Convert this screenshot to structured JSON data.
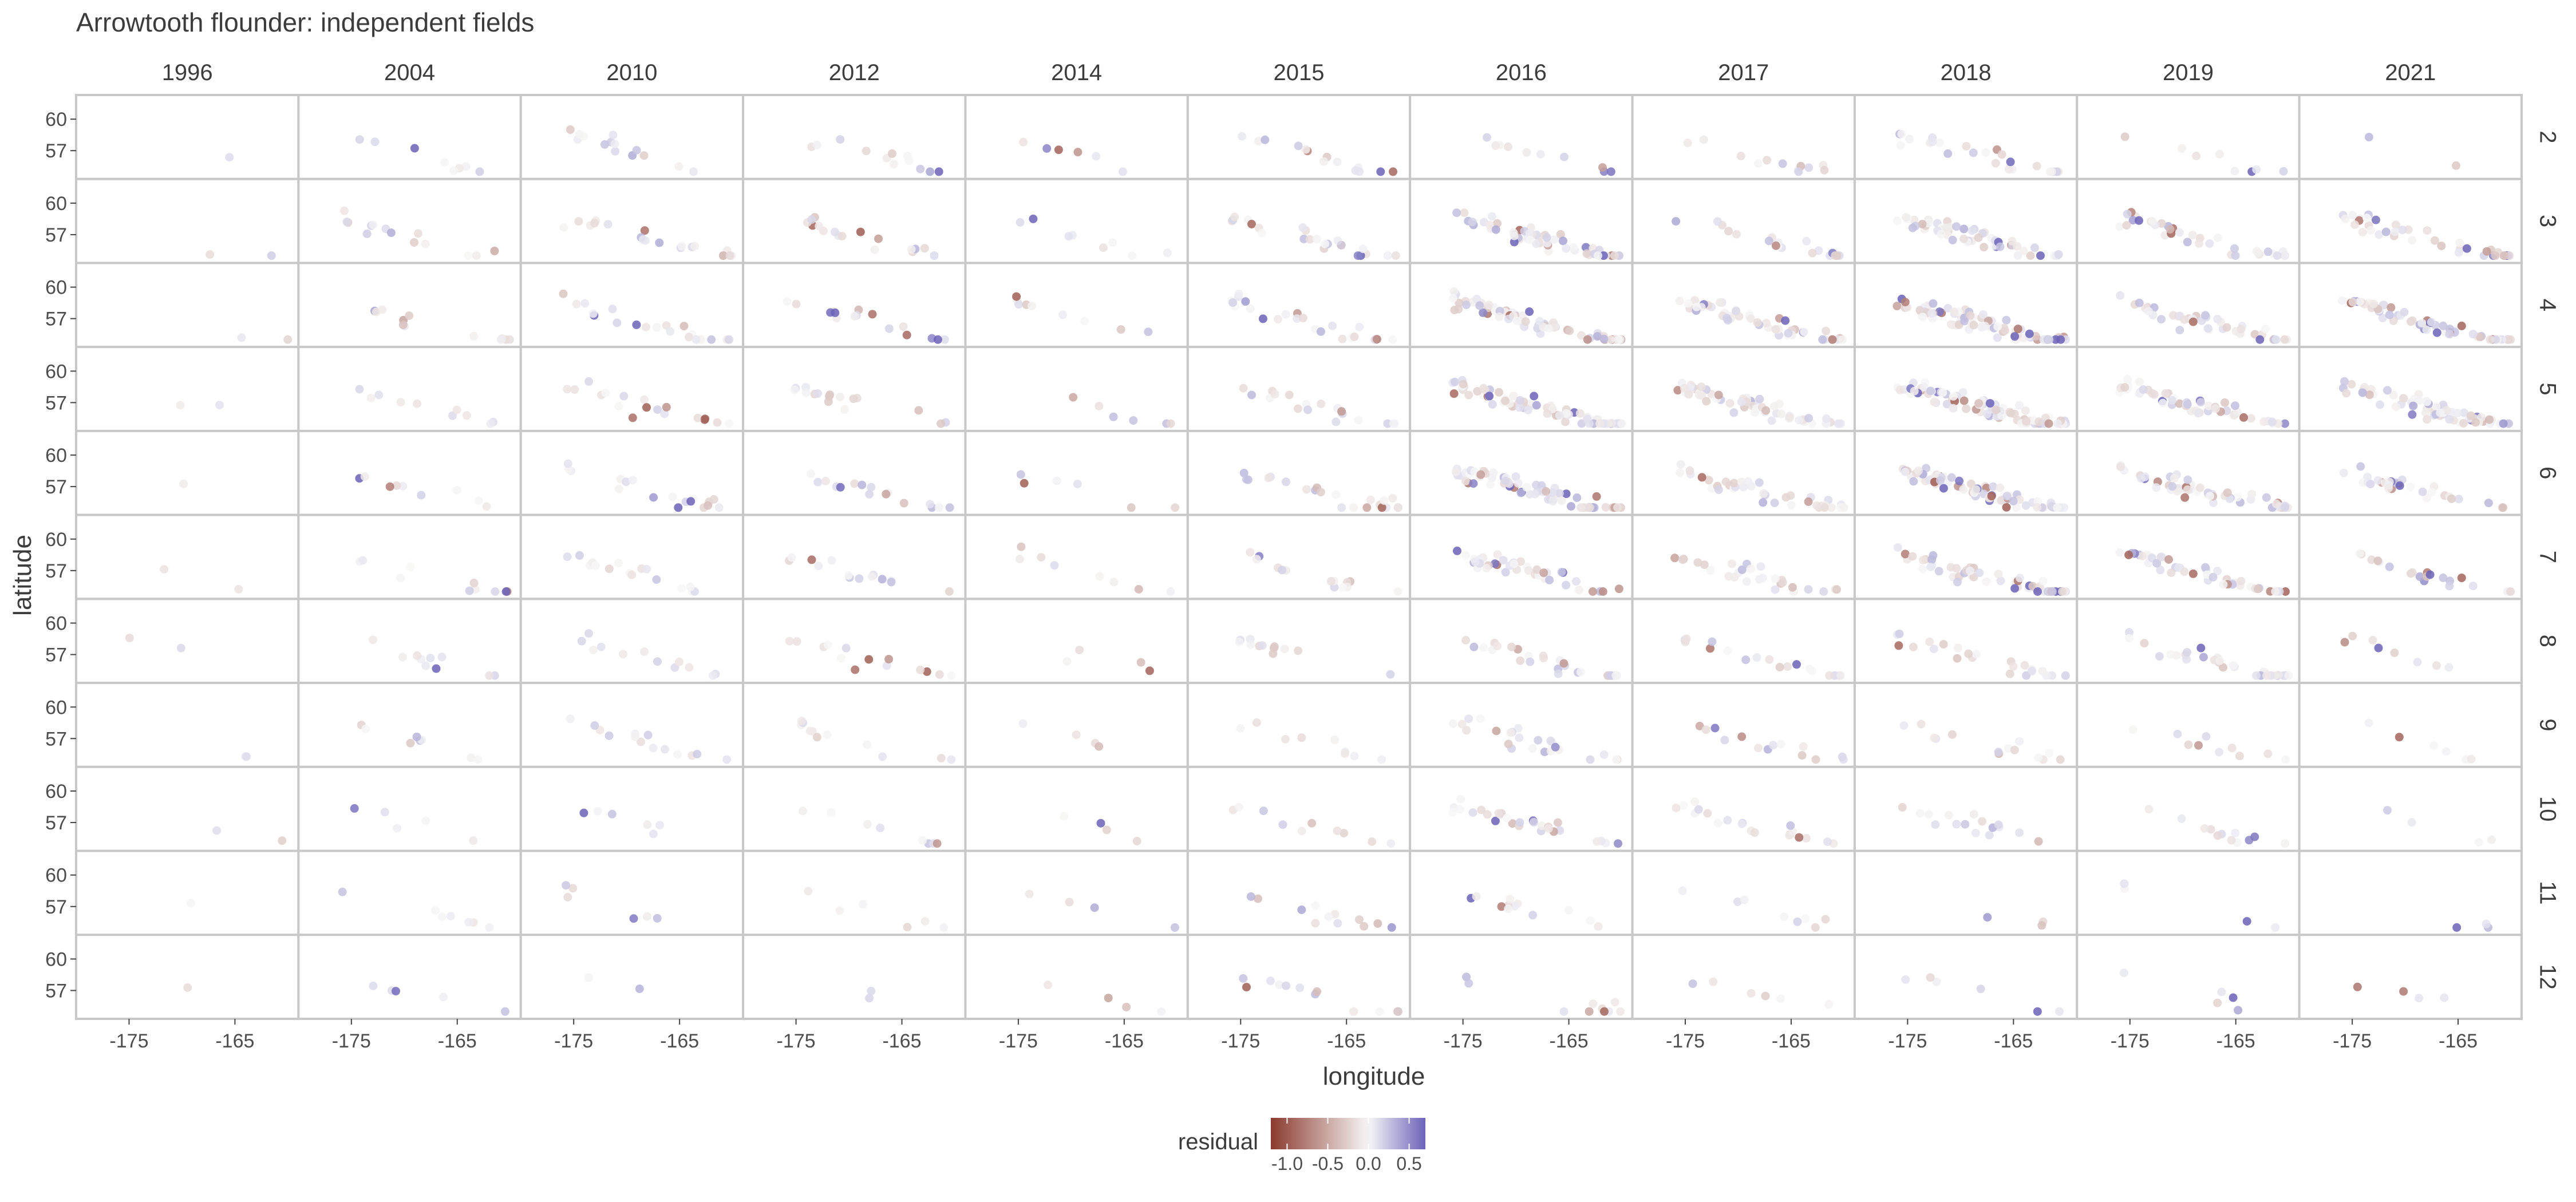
{
  "chart_data": {
    "type": "scatter",
    "title": "Arrowtooth flounder: independent fields",
    "xlabel": "longitude",
    "ylabel": "latitude",
    "facet_columns": [
      "1996",
      "2004",
      "2010",
      "2012",
      "2014",
      "2015",
      "2016",
      "2017",
      "2018",
      "2019",
      "2021"
    ],
    "facet_rows": [
      "2",
      "3",
      "4",
      "5",
      "6",
      "7",
      "8",
      "9",
      "10",
      "11",
      "12"
    ],
    "x_ticks": [
      -175,
      -165
    ],
    "x_tick_labels": [
      "-175",
      "-165"
    ],
    "y_ticks": [
      60,
      57
    ],
    "y_tick_labels": [
      "60",
      "57"
    ],
    "xlim": [
      -180,
      -159
    ],
    "ylim": [
      54.3,
      62.3
    ],
    "legend": {
      "title": "residual",
      "position": "bottom",
      "range": [
        -1.2,
        0.7
      ],
      "ticks": [
        -1.0,
        -0.5,
        0.0,
        0.5
      ],
      "tick_labels": [
        "-1.0",
        "-0.5",
        "0.0",
        "0.5"
      ],
      "low_color": "#8b3a2e",
      "mid_color": "#f7f7f7",
      "high_color": "#6b63b8"
    },
    "panel_background": "#ffffff",
    "panel_border_color": "#c8c8c8",
    "points_note": "Each panel holds survey stations (longitude, latitude) colored by residual; density varies by panel."
  }
}
